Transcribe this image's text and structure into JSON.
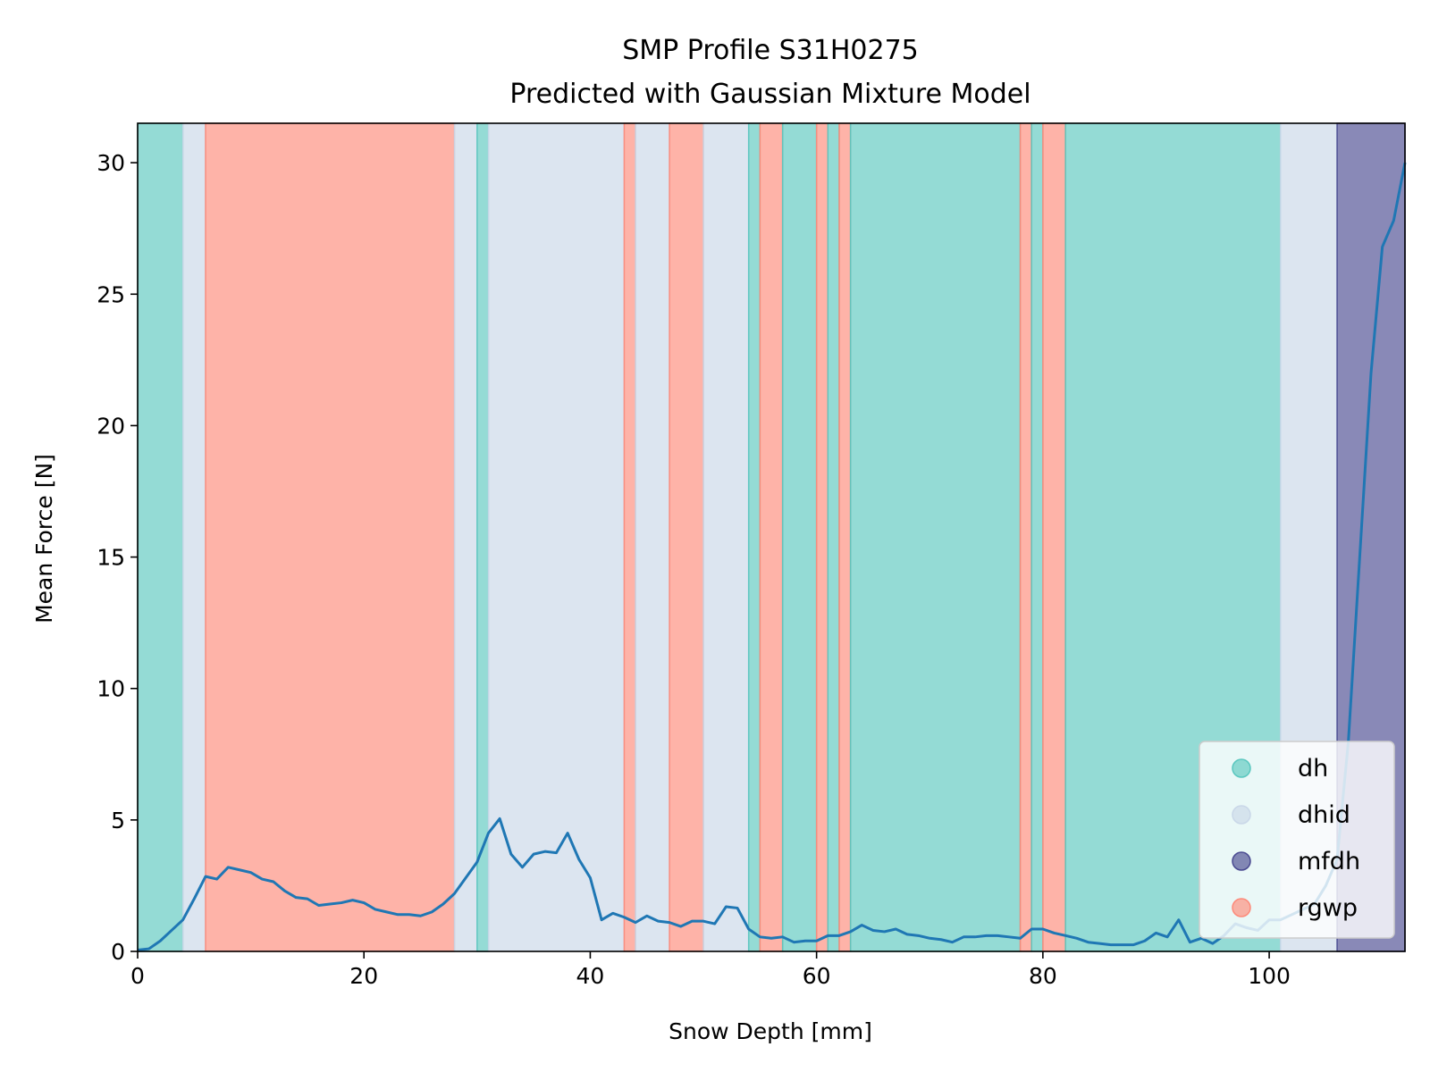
{
  "chart_data": {
    "type": "line",
    "title": "SMP Profile S31H0275",
    "subtitle": "Predicted with Gaussian Mixture Model",
    "xlabel": "Snow Depth [mm]",
    "ylabel": "Mean Force [N]",
    "xlim": [
      0,
      112
    ],
    "ylim": [
      0,
      31.5
    ],
    "xticks": [
      0,
      20,
      40,
      60,
      80,
      100
    ],
    "yticks": [
      0,
      5,
      10,
      15,
      20,
      25,
      30
    ],
    "grid": false,
    "legend_position": "lower right",
    "colors": {
      "line": "#1f77b4",
      "dh": "#5ac7bf",
      "dhid": "#c9d7e8",
      "mfdh": "#4a4a91",
      "rgwp": "#fd8a7a"
    },
    "legend": [
      {
        "key": "dh",
        "label": "dh"
      },
      {
        "key": "dhid",
        "label": "dhid"
      },
      {
        "key": "mfdh",
        "label": "mfdh"
      },
      {
        "key": "rgwp",
        "label": "rgwp"
      }
    ],
    "segments": [
      {
        "start": 0,
        "end": 4,
        "label": "dh"
      },
      {
        "start": 4,
        "end": 6,
        "label": "dhid"
      },
      {
        "start": 6,
        "end": 28,
        "label": "rgwp"
      },
      {
        "start": 28,
        "end": 30,
        "label": "dhid"
      },
      {
        "start": 30,
        "end": 31,
        "label": "dh"
      },
      {
        "start": 31,
        "end": 43,
        "label": "dhid"
      },
      {
        "start": 43,
        "end": 44,
        "label": "rgwp"
      },
      {
        "start": 44,
        "end": 47,
        "label": "dhid"
      },
      {
        "start": 47,
        "end": 50,
        "label": "rgwp"
      },
      {
        "start": 50,
        "end": 54,
        "label": "dhid"
      },
      {
        "start": 54,
        "end": 55,
        "label": "dh"
      },
      {
        "start": 55,
        "end": 57,
        "label": "rgwp"
      },
      {
        "start": 57,
        "end": 60,
        "label": "dh"
      },
      {
        "start": 60,
        "end": 61,
        "label": "rgwp"
      },
      {
        "start": 61,
        "end": 62,
        "label": "dh"
      },
      {
        "start": 62,
        "end": 63,
        "label": "rgwp"
      },
      {
        "start": 63,
        "end": 78,
        "label": "dh"
      },
      {
        "start": 78,
        "end": 79,
        "label": "rgwp"
      },
      {
        "start": 79,
        "end": 80,
        "label": "dh"
      },
      {
        "start": 80,
        "end": 82,
        "label": "rgwp"
      },
      {
        "start": 82,
        "end": 101,
        "label": "dh"
      },
      {
        "start": 101,
        "end": 106,
        "label": "dhid"
      },
      {
        "start": 106,
        "end": 112,
        "label": "mfdh"
      }
    ],
    "series": [
      {
        "x": [
          0,
          1,
          2,
          3,
          4,
          5,
          6,
          7,
          8,
          9,
          10,
          11,
          12,
          13,
          14,
          15,
          16,
          17,
          18,
          19,
          20,
          21,
          22,
          23,
          24,
          25,
          26,
          27,
          28,
          29,
          30,
          31,
          32,
          33,
          34,
          35,
          36,
          37,
          38,
          39,
          40,
          41,
          42,
          43,
          44,
          45,
          46,
          47,
          48,
          49,
          50,
          51,
          52,
          53,
          54,
          55,
          56,
          57,
          58,
          59,
          60,
          61,
          62,
          63,
          64,
          65,
          66,
          67,
          68,
          69,
          70,
          71,
          72,
          73,
          74,
          75,
          76,
          77,
          78,
          79,
          80,
          81,
          82,
          83,
          84,
          85,
          86,
          87,
          88,
          89,
          90,
          91,
          92,
          93,
          94,
          95,
          96,
          97,
          98,
          99,
          100,
          101,
          102,
          103,
          104,
          105,
          106,
          107,
          108,
          109,
          110,
          111,
          112
        ],
        "y": [
          0.05,
          0.1,
          0.4,
          0.8,
          1.2,
          2.0,
          2.85,
          2.75,
          3.2,
          3.1,
          3.0,
          2.75,
          2.65,
          2.3,
          2.05,
          2.0,
          1.75,
          1.8,
          1.85,
          1.95,
          1.85,
          1.6,
          1.5,
          1.4,
          1.4,
          1.35,
          1.5,
          1.8,
          2.2,
          2.8,
          3.4,
          4.5,
          5.05,
          3.7,
          3.2,
          3.7,
          3.8,
          3.75,
          4.5,
          3.5,
          2.8,
          1.2,
          1.45,
          1.3,
          1.1,
          1.35,
          1.15,
          1.1,
          0.95,
          1.15,
          1.15,
          1.05,
          1.7,
          1.65,
          0.85,
          0.55,
          0.5,
          0.55,
          0.35,
          0.4,
          0.4,
          0.6,
          0.6,
          0.75,
          1.0,
          0.8,
          0.75,
          0.85,
          0.65,
          0.6,
          0.5,
          0.45,
          0.35,
          0.55,
          0.55,
          0.6,
          0.6,
          0.55,
          0.5,
          0.85,
          0.85,
          0.7,
          0.6,
          0.5,
          0.35,
          0.3,
          0.25,
          0.25,
          0.25,
          0.4,
          0.7,
          0.55,
          1.2,
          0.35,
          0.5,
          0.3,
          0.6,
          1.05,
          0.9,
          0.8,
          1.2,
          1.2,
          1.4,
          1.6,
          1.8,
          2.5,
          3.5,
          8.0,
          15.0,
          22.0,
          26.8,
          27.8,
          30.0
        ]
      }
    ]
  }
}
